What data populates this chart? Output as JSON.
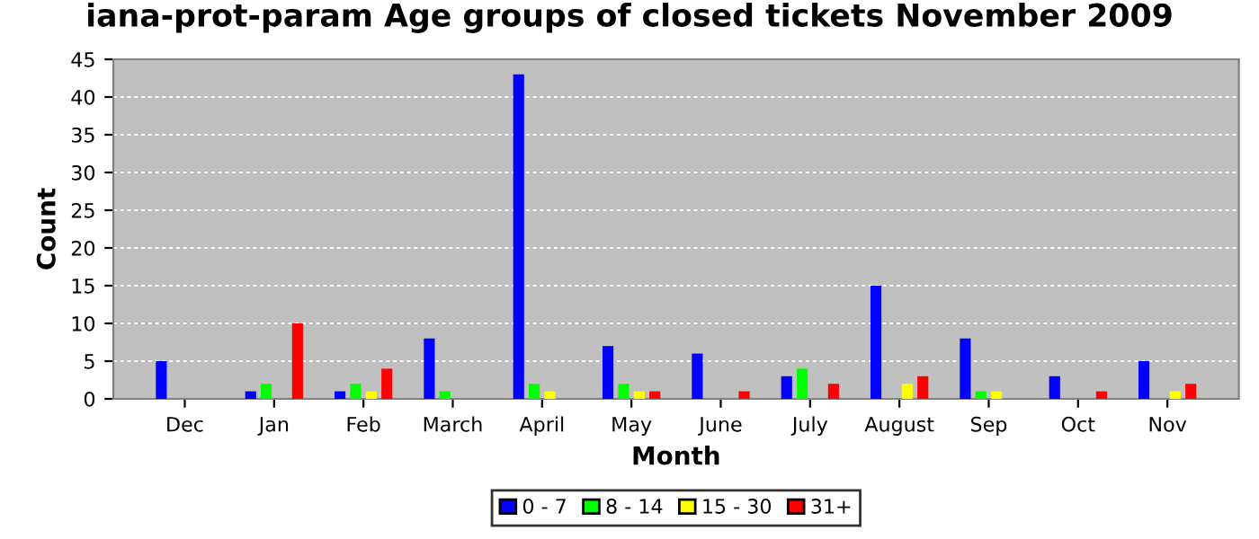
{
  "chart_data": {
    "type": "bar",
    "title": "iana-prot-param Age groups of closed tickets November 2009",
    "xlabel": "Month",
    "ylabel": "Count",
    "categories": [
      "Dec",
      "Jan",
      "Feb",
      "March",
      "April",
      "May",
      "June",
      "July",
      "August",
      "Sep",
      "Oct",
      "Nov"
    ],
    "series": [
      {
        "name": "0 - 7",
        "color": "#0000ff",
        "values": [
          5,
          1,
          1,
          8,
          43,
          7,
          6,
          3,
          15,
          8,
          3,
          5
        ]
      },
      {
        "name": "8 - 14",
        "color": "#00ff00",
        "values": [
          0,
          2,
          2,
          1,
          2,
          2,
          0,
          4,
          0,
          1,
          0,
          0
        ]
      },
      {
        "name": "15 - 30",
        "color": "#ffff00",
        "values": [
          0,
          0,
          1,
          0,
          1,
          1,
          0,
          0,
          2,
          1,
          0,
          1
        ]
      },
      {
        "name": "31+",
        "color": "#ff0000",
        "values": [
          0,
          10,
          4,
          0,
          0,
          1,
          1,
          2,
          3,
          0,
          1,
          2
        ]
      }
    ],
    "ylim": [
      0,
      45
    ],
    "yticks": [
      0,
      5,
      10,
      15,
      20,
      25,
      30,
      35,
      40,
      45
    ],
    "grid": "y",
    "legend": "bottom"
  }
}
